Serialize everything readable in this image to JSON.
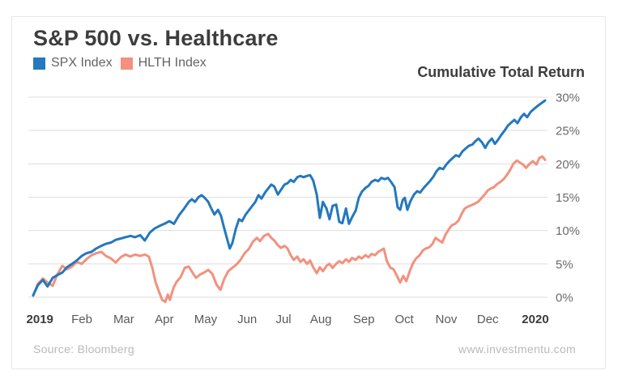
{
  "header": {
    "title": "S&P 500 vs. Healthcare"
  },
  "legend": {
    "items": [
      {
        "label": "SPX Index",
        "color": "#2478bd"
      },
      {
        "label": "HLTH Index",
        "color": "#f2917e"
      }
    ]
  },
  "footer": {
    "source": "Source: Bloomberg",
    "website": "www.investmentu.com"
  },
  "chart_data": {
    "type": "line",
    "title": "S&P 500 vs. Healthcare",
    "y_axis": {
      "label": "Cumulative Total Return",
      "unit": "%",
      "ylim": [
        0,
        30
      ],
      "grid": true,
      "ticks": [
        {
          "value": 0,
          "label": "0%"
        },
        {
          "value": 5,
          "label": "5%"
        },
        {
          "value": 10,
          "label": "10%"
        },
        {
          "value": 15,
          "label": "15%"
        },
        {
          "value": 20,
          "label": "20%"
        },
        {
          "value": 25,
          "label": "25%"
        },
        {
          "value": 30,
          "label": "30%"
        }
      ]
    },
    "x_axis": {
      "label": "Jan 2019 through early Jan 2020",
      "ticks": [
        {
          "label": "2019",
          "pos": 0.013,
          "bold": true
        },
        {
          "label": "Feb",
          "pos": 0.095
        },
        {
          "label": "Mar",
          "pos": 0.177
        },
        {
          "label": "Apr",
          "pos": 0.256
        },
        {
          "label": "May",
          "pos": 0.337
        },
        {
          "label": "Jun",
          "pos": 0.418
        },
        {
          "label": "Jul",
          "pos": 0.489
        },
        {
          "label": "Aug",
          "pos": 0.562
        },
        {
          "label": "Sep",
          "pos": 0.646
        },
        {
          "label": "Oct",
          "pos": 0.725
        },
        {
          "label": "Nov",
          "pos": 0.807
        },
        {
          "label": "Dec",
          "pos": 0.888
        },
        {
          "label": "2020",
          "pos": 0.981,
          "bold": true
        }
      ]
    },
    "legend_position": "top-left",
    "series": [
      {
        "id": "spx-line",
        "name": "SPX Index",
        "color": "#2478bd",
        "points": [
          [
            0,
            0.3
          ],
          [
            0.009,
            1.8
          ],
          [
            0.019,
            2.6
          ],
          [
            0.028,
            1.6
          ],
          [
            0.038,
            2.9
          ],
          [
            0.047,
            3.3
          ],
          [
            0.057,
            3.7
          ],
          [
            0.066,
            4.5
          ],
          [
            0.076,
            5.0
          ],
          [
            0.085,
            5.5
          ],
          [
            0.095,
            6.2
          ],
          [
            0.104,
            6.6
          ],
          [
            0.114,
            6.8
          ],
          [
            0.123,
            7.3
          ],
          [
            0.133,
            7.7
          ],
          [
            0.142,
            8.0
          ],
          [
            0.152,
            8.2
          ],
          [
            0.161,
            8.6
          ],
          [
            0.171,
            8.8
          ],
          [
            0.18,
            9.0
          ],
          [
            0.19,
            9.2
          ],
          [
            0.199,
            9.0
          ],
          [
            0.209,
            9.3
          ],
          [
            0.218,
            8.5
          ],
          [
            0.228,
            9.7
          ],
          [
            0.237,
            10.3
          ],
          [
            0.247,
            10.7
          ],
          [
            0.256,
            11.0
          ],
          [
            0.266,
            11.4
          ],
          [
            0.275,
            11.0
          ],
          [
            0.285,
            12.3
          ],
          [
            0.294,
            13.2
          ],
          [
            0.304,
            14.3
          ],
          [
            0.31,
            14.7
          ],
          [
            0.316,
            14.3
          ],
          [
            0.323,
            15.0
          ],
          [
            0.329,
            15.3
          ],
          [
            0.335,
            14.9
          ],
          [
            0.342,
            14.3
          ],
          [
            0.348,
            13.3
          ],
          [
            0.354,
            12.4
          ],
          [
            0.361,
            13.1
          ],
          [
            0.367,
            12.2
          ],
          [
            0.373,
            10.4
          ],
          [
            0.38,
            8.4
          ],
          [
            0.384,
            7.3
          ],
          [
            0.389,
            8.1
          ],
          [
            0.396,
            10.3
          ],
          [
            0.402,
            11.7
          ],
          [
            0.408,
            11.4
          ],
          [
            0.415,
            12.4
          ],
          [
            0.421,
            13.0
          ],
          [
            0.427,
            13.6
          ],
          [
            0.434,
            14.3
          ],
          [
            0.44,
            15.3
          ],
          [
            0.446,
            14.8
          ],
          [
            0.453,
            15.7
          ],
          [
            0.459,
            16.3
          ],
          [
            0.465,
            16.9
          ],
          [
            0.471,
            16.6
          ],
          [
            0.478,
            15.4
          ],
          [
            0.484,
            16.1
          ],
          [
            0.491,
            16.9
          ],
          [
            0.497,
            17.1
          ],
          [
            0.503,
            17.6
          ],
          [
            0.509,
            17.3
          ],
          [
            0.516,
            18.0
          ],
          [
            0.522,
            18.2
          ],
          [
            0.528,
            18.0
          ],
          [
            0.535,
            18.2
          ],
          [
            0.541,
            18.3
          ],
          [
            0.547,
            17.5
          ],
          [
            0.554,
            15.4
          ],
          [
            0.56,
            11.9
          ],
          [
            0.566,
            14.3
          ],
          [
            0.573,
            13.3
          ],
          [
            0.579,
            11.7
          ],
          [
            0.585,
            13.7
          ],
          [
            0.592,
            13.9
          ],
          [
            0.598,
            11.3
          ],
          [
            0.604,
            11.1
          ],
          [
            0.611,
            13.3
          ],
          [
            0.617,
            11.0
          ],
          [
            0.623,
            12.0
          ],
          [
            0.63,
            13.0
          ],
          [
            0.636,
            14.9
          ],
          [
            0.642,
            15.8
          ],
          [
            0.649,
            16.4
          ],
          [
            0.655,
            16.7
          ],
          [
            0.661,
            17.3
          ],
          [
            0.668,
            17.6
          ],
          [
            0.674,
            17.4
          ],
          [
            0.68,
            17.9
          ],
          [
            0.687,
            17.7
          ],
          [
            0.693,
            17.9
          ],
          [
            0.699,
            17.3
          ],
          [
            0.706,
            16.5
          ],
          [
            0.712,
            13.5
          ],
          [
            0.717,
            13.1
          ],
          [
            0.722,
            14.6
          ],
          [
            0.726,
            14.9
          ],
          [
            0.731,
            13.1
          ],
          [
            0.737,
            14.4
          ],
          [
            0.744,
            15.4
          ],
          [
            0.75,
            15.9
          ],
          [
            0.756,
            15.7
          ],
          [
            0.763,
            16.4
          ],
          [
            0.769,
            16.9
          ],
          [
            0.775,
            17.4
          ],
          [
            0.782,
            18.1
          ],
          [
            0.788,
            18.9
          ],
          [
            0.794,
            19.4
          ],
          [
            0.801,
            19.2
          ],
          [
            0.807,
            19.9
          ],
          [
            0.813,
            20.4
          ],
          [
            0.82,
            20.9
          ],
          [
            0.826,
            21.3
          ],
          [
            0.832,
            21.1
          ],
          [
            0.839,
            21.9
          ],
          [
            0.845,
            22.3
          ],
          [
            0.851,
            22.7
          ],
          [
            0.858,
            22.9
          ],
          [
            0.864,
            23.4
          ],
          [
            0.87,
            23.8
          ],
          [
            0.877,
            23.2
          ],
          [
            0.883,
            22.4
          ],
          [
            0.889,
            23.2
          ],
          [
            0.896,
            23.8
          ],
          [
            0.902,
            23.0
          ],
          [
            0.908,
            23.6
          ],
          [
            0.915,
            24.4
          ],
          [
            0.921,
            25.0
          ],
          [
            0.927,
            25.7
          ],
          [
            0.934,
            26.2
          ],
          [
            0.94,
            26.6
          ],
          [
            0.946,
            26.1
          ],
          [
            0.953,
            27.0
          ],
          [
            0.959,
            27.5
          ],
          [
            0.965,
            27.0
          ],
          [
            0.972,
            27.8
          ],
          [
            0.978,
            28.2
          ],
          [
            0.984,
            28.6
          ],
          [
            0.991,
            29.0
          ],
          [
            1,
            29.5
          ]
        ]
      },
      {
        "id": "hlth-line",
        "name": "HLTH Index",
        "color": "#f2917e",
        "points": [
          [
            0,
            0.2
          ],
          [
            0.009,
            2.0
          ],
          [
            0.019,
            2.8
          ],
          [
            0.028,
            2.2
          ],
          [
            0.038,
            1.7
          ],
          [
            0.047,
            3.4
          ],
          [
            0.057,
            4.7
          ],
          [
            0.066,
            4.2
          ],
          [
            0.076,
            4.6
          ],
          [
            0.085,
            5.3
          ],
          [
            0.095,
            5.0
          ],
          [
            0.104,
            5.7
          ],
          [
            0.114,
            6.3
          ],
          [
            0.123,
            6.6
          ],
          [
            0.133,
            6.8
          ],
          [
            0.142,
            6.2
          ],
          [
            0.152,
            5.8
          ],
          [
            0.161,
            5.2
          ],
          [
            0.171,
            6.0
          ],
          [
            0.18,
            6.4
          ],
          [
            0.19,
            6.1
          ],
          [
            0.199,
            6.4
          ],
          [
            0.209,
            6.2
          ],
          [
            0.218,
            6.4
          ],
          [
            0.226,
            6.1
          ],
          [
            0.233,
            4.3
          ],
          [
            0.239,
            2.3
          ],
          [
            0.245,
            1.0
          ],
          [
            0.252,
            -0.4
          ],
          [
            0.258,
            -0.7
          ],
          [
            0.263,
            0.4
          ],
          [
            0.267,
            -0.4
          ],
          [
            0.274,
            1.4
          ],
          [
            0.28,
            2.3
          ],
          [
            0.288,
            3.0
          ],
          [
            0.296,
            4.4
          ],
          [
            0.304,
            4.6
          ],
          [
            0.312,
            3.6
          ],
          [
            0.318,
            2.9
          ],
          [
            0.326,
            3.4
          ],
          [
            0.334,
            3.7
          ],
          [
            0.342,
            4.1
          ],
          [
            0.35,
            3.5
          ],
          [
            0.358,
            1.9
          ],
          [
            0.366,
            1.1
          ],
          [
            0.373,
            2.7
          ],
          [
            0.381,
            3.9
          ],
          [
            0.389,
            4.4
          ],
          [
            0.397,
            4.9
          ],
          [
            0.405,
            5.6
          ],
          [
            0.413,
            6.6
          ],
          [
            0.421,
            7.2
          ],
          [
            0.429,
            8.3
          ],
          [
            0.437,
            8.9
          ],
          [
            0.443,
            8.4
          ],
          [
            0.451,
            9.2
          ],
          [
            0.459,
            9.5
          ],
          [
            0.465,
            8.9
          ],
          [
            0.471,
            8.5
          ],
          [
            0.478,
            7.8
          ],
          [
            0.484,
            7.4
          ],
          [
            0.491,
            7.7
          ],
          [
            0.497,
            7.3
          ],
          [
            0.503,
            6.3
          ],
          [
            0.509,
            5.6
          ],
          [
            0.516,
            6.1
          ],
          [
            0.522,
            5.3
          ],
          [
            0.528,
            5.7
          ],
          [
            0.535,
            5.0
          ],
          [
            0.541,
            5.5
          ],
          [
            0.547,
            4.5
          ],
          [
            0.554,
            3.6
          ],
          [
            0.56,
            4.5
          ],
          [
            0.566,
            3.9
          ],
          [
            0.573,
            4.7
          ],
          [
            0.579,
            5.0
          ],
          [
            0.585,
            4.4
          ],
          [
            0.592,
            5.0
          ],
          [
            0.598,
            5.4
          ],
          [
            0.604,
            5.1
          ],
          [
            0.611,
            5.7
          ],
          [
            0.617,
            5.3
          ],
          [
            0.623,
            5.9
          ],
          [
            0.63,
            5.6
          ],
          [
            0.636,
            6.1
          ],
          [
            0.642,
            5.8
          ],
          [
            0.649,
            6.3
          ],
          [
            0.655,
            6.0
          ],
          [
            0.661,
            6.5
          ],
          [
            0.668,
            6.3
          ],
          [
            0.674,
            6.8
          ],
          [
            0.685,
            7.3
          ],
          [
            0.691,
            5.4
          ],
          [
            0.698,
            4.4
          ],
          [
            0.704,
            4.2
          ],
          [
            0.71,
            3.3
          ],
          [
            0.717,
            2.2
          ],
          [
            0.723,
            3.2
          ],
          [
            0.729,
            2.4
          ],
          [
            0.736,
            4.0
          ],
          [
            0.742,
            5.1
          ],
          [
            0.748,
            5.8
          ],
          [
            0.755,
            6.3
          ],
          [
            0.761,
            7.0
          ],
          [
            0.767,
            7.3
          ],
          [
            0.774,
            7.5
          ],
          [
            0.78,
            8.0
          ],
          [
            0.786,
            8.9
          ],
          [
            0.793,
            8.5
          ],
          [
            0.799,
            8.2
          ],
          [
            0.805,
            9.3
          ],
          [
            0.812,
            10.2
          ],
          [
            0.818,
            10.8
          ],
          [
            0.824,
            11.0
          ],
          [
            0.831,
            11.5
          ],
          [
            0.837,
            12.5
          ],
          [
            0.843,
            13.3
          ],
          [
            0.85,
            13.6
          ],
          [
            0.856,
            13.8
          ],
          [
            0.862,
            14.0
          ],
          [
            0.869,
            14.3
          ],
          [
            0.875,
            14.8
          ],
          [
            0.881,
            15.3
          ],
          [
            0.888,
            16.0
          ],
          [
            0.894,
            16.3
          ],
          [
            0.9,
            16.5
          ],
          [
            0.907,
            17.0
          ],
          [
            0.913,
            17.3
          ],
          [
            0.919,
            17.7
          ],
          [
            0.926,
            18.4
          ],
          [
            0.932,
            19.1
          ],
          [
            0.938,
            20.0
          ],
          [
            0.945,
            20.5
          ],
          [
            0.951,
            20.2
          ],
          [
            0.957,
            19.9
          ],
          [
            0.963,
            19.4
          ],
          [
            0.97,
            20.0
          ],
          [
            0.976,
            20.4
          ],
          [
            0.983,
            19.9
          ],
          [
            0.989,
            20.9
          ],
          [
            0.995,
            21.1
          ],
          [
            1,
            20.6
          ]
        ]
      }
    ]
  }
}
